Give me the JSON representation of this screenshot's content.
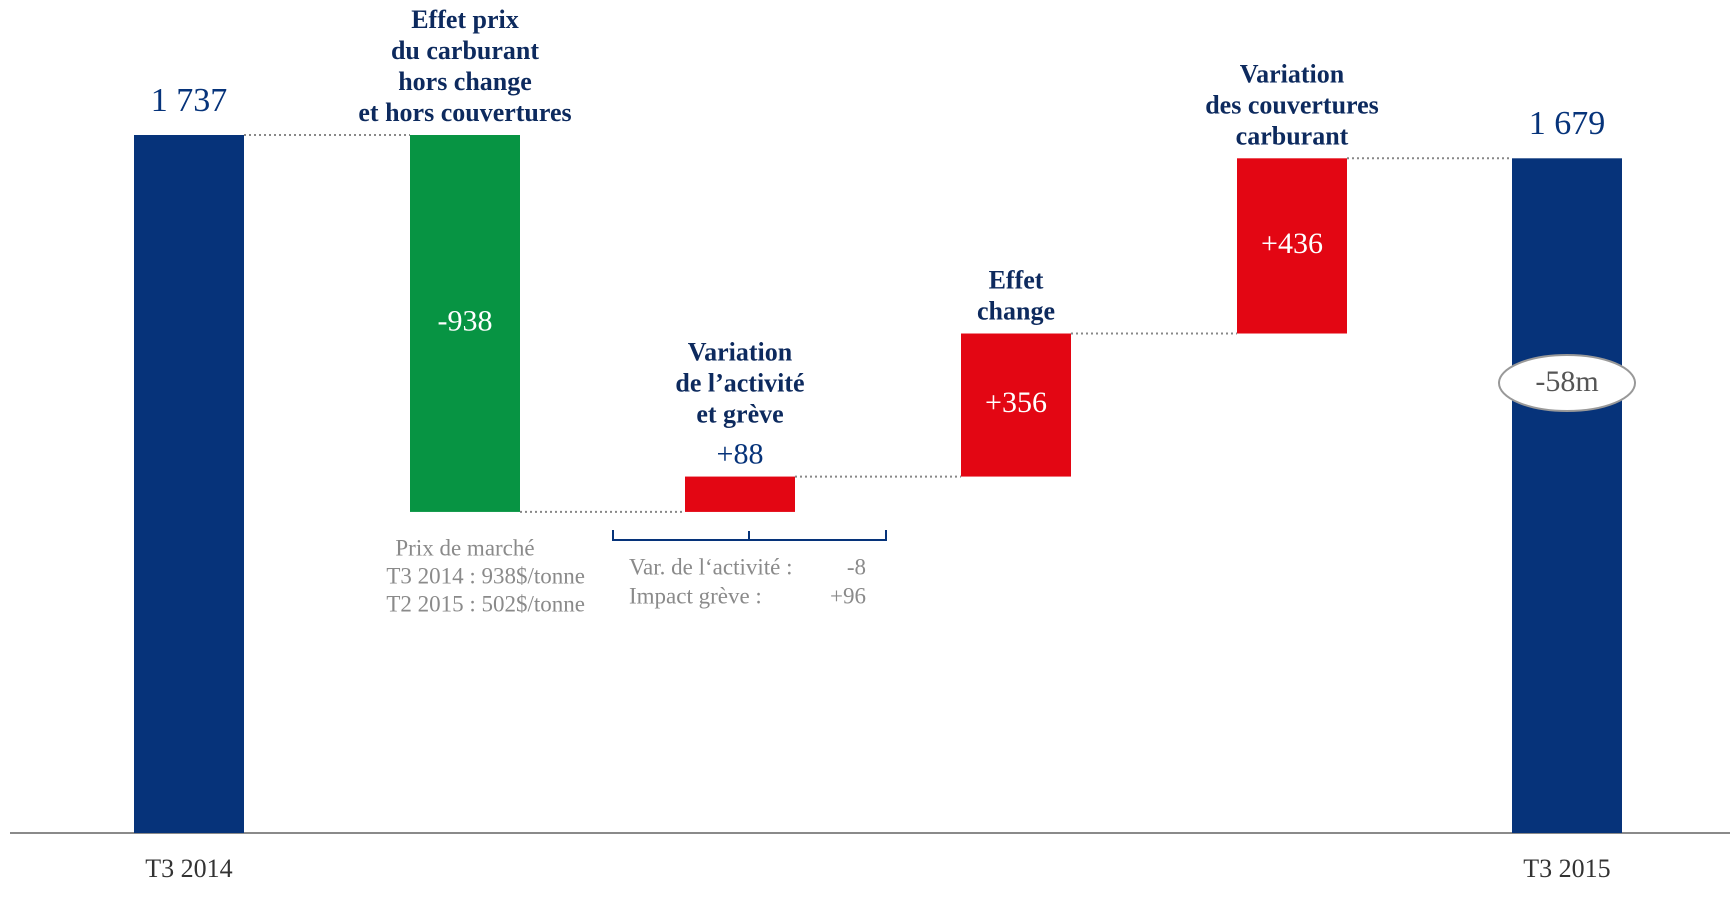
{
  "chart_data": {
    "type": "waterfall",
    "categories": [
      "T3 2014",
      [
        "Effet prix",
        "du carburant",
        "hors change",
        "et hors couvertures"
      ],
      [
        "Variation",
        "de l’activité",
        "et grève"
      ],
      [
        "Effet",
        "change"
      ],
      [
        "Variation",
        "des couvertures",
        "carburant"
      ],
      "T3 2015"
    ],
    "values": [
      1737,
      -938,
      88,
      356,
      436,
      1679
    ],
    "value_labels": [
      "1 737",
      "-938",
      "+88",
      "+356",
      "+436",
      "1 679"
    ],
    "kinds": [
      "total",
      "delta",
      "delta",
      "delta",
      "delta",
      "total"
    ],
    "colors": [
      "#06337a",
      "#079443",
      "#e30613",
      "#e30613",
      "#e30613",
      "#06337a"
    ],
    "annotations": {
      "fuel_price": [
        "Prix de marché",
        "T3 2014  : 938$/tonne",
        "T2 2015  : 502$/tonne"
      ],
      "activity": [
        [
          "Var. de l‘activité :",
          "-8"
        ],
        [
          "Impact grève :",
          "+96"
        ]
      ],
      "total_change": "-58m"
    }
  }
}
